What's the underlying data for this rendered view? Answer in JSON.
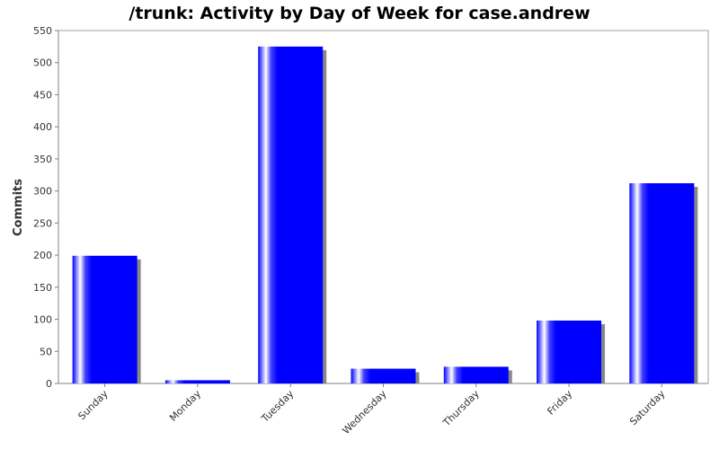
{
  "chart_data": {
    "type": "bar",
    "title": "/trunk: Activity by Day of Week for case.andrew",
    "xlabel": "",
    "ylabel": "Commits",
    "categories": [
      "Sunday",
      "Monday",
      "Tuesday",
      "Wednesday",
      "Thursday",
      "Friday",
      "Saturday"
    ],
    "values": [
      199,
      5,
      525,
      23,
      26,
      98,
      312
    ],
    "ylim": [
      0,
      550
    ],
    "yticks": [
      0,
      50,
      100,
      150,
      200,
      250,
      300,
      350,
      400,
      450,
      500,
      550
    ],
    "bar_color": "#0000ff",
    "shadow_color": "#888888",
    "grid": false,
    "legend": "none"
  }
}
